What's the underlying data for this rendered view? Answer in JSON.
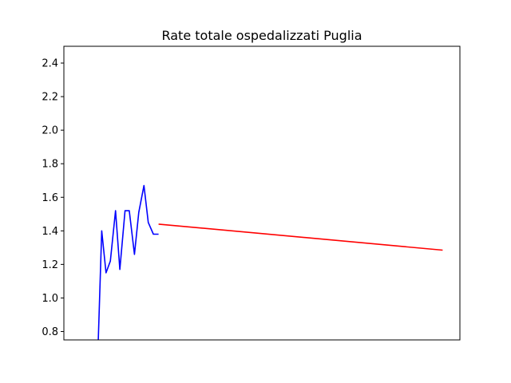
{
  "chart_data": {
    "type": "line",
    "title": "Rate totale ospedalizzati Puglia",
    "xlabel": "",
    "ylabel": "",
    "xlim": [
      0,
      46
    ],
    "ylim": [
      0.75,
      2.5
    ],
    "x_ticks_shown": false,
    "yticks": [
      "0.8",
      "1.0",
      "1.2",
      "1.4",
      "1.6",
      "1.8",
      "2.0",
      "2.2",
      "2.4"
    ],
    "grid": false,
    "series": [
      {
        "color": "#0000ff",
        "x": [
          4,
          4.4,
          4.9,
          5.4,
          6.0,
          6.5,
          7.1,
          7.6,
          8.2,
          8.7,
          9.3,
          9.8,
          10.4,
          11.0
        ],
        "y": [
          0.75,
          1.4,
          1.15,
          1.22,
          1.52,
          1.17,
          1.52,
          1.52,
          1.26,
          1.51,
          1.67,
          1.45,
          1.38,
          1.38
        ]
      },
      {
        "color": "#ff0000",
        "x": [
          11.0,
          44.0
        ],
        "y": [
          1.44,
          1.285
        ]
      }
    ]
  }
}
